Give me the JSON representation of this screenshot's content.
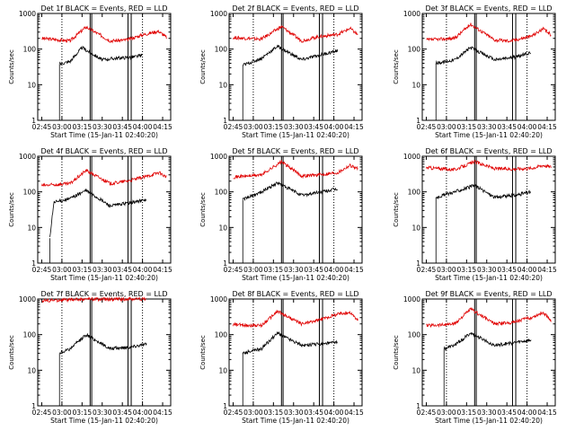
{
  "start_time_label": "Start Time (15-Jan-11 02:40:20)",
  "y_label": "Counts/sec",
  "x_ticks": [
    "02:45",
    "03:00",
    "03:15",
    "03:30",
    "03:45",
    "04:00",
    "04:15"
  ],
  "y_ticks": [
    "1",
    "10",
    "100",
    "1000"
  ],
  "colors": {
    "events": "#000000",
    "lld": "#e00000"
  },
  "chart_data": [
    {
      "type": "line",
      "title": "Det 1f BLACK = Events, RED = LLD",
      "events": [
        [
          2.97,
          38
        ],
        [
          3.1,
          45
        ],
        [
          3.25,
          110
        ],
        [
          3.5,
          50
        ],
        [
          3.65,
          55
        ],
        [
          3.9,
          60
        ],
        [
          4.0,
          68
        ]
      ],
      "lld": [
        [
          2.75,
          200
        ],
        [
          3.1,
          170
        ],
        [
          3.3,
          420
        ],
        [
          3.6,
          170
        ],
        [
          3.8,
          180
        ],
        [
          4.0,
          250
        ],
        [
          4.2,
          320
        ],
        [
          4.3,
          210
        ]
      ]
    },
    {
      "type": "line",
      "title": "Det 2f BLACK = Events, RED = LLD",
      "events": [
        [
          2.87,
          35
        ],
        [
          3.1,
          55
        ],
        [
          3.3,
          120
        ],
        [
          3.6,
          50
        ],
        [
          3.85,
          70
        ],
        [
          4.05,
          90
        ]
      ],
      "lld": [
        [
          2.75,
          210
        ],
        [
          3.1,
          190
        ],
        [
          3.35,
          430
        ],
        [
          3.6,
          170
        ],
        [
          3.8,
          220
        ],
        [
          4.05,
          260
        ],
        [
          4.2,
          380
        ],
        [
          4.3,
          250
        ]
      ]
    },
    {
      "type": "line",
      "title": "Det 3f BLACK = Events, RED = LLD",
      "events": [
        [
          2.87,
          40
        ],
        [
          3.1,
          50
        ],
        [
          3.3,
          110
        ],
        [
          3.6,
          50
        ],
        [
          3.85,
          60
        ],
        [
          4.05,
          80
        ]
      ],
      "lld": [
        [
          2.75,
          180
        ],
        [
          3.1,
          200
        ],
        [
          3.3,
          500
        ],
        [
          3.6,
          180
        ],
        [
          3.8,
          170
        ],
        [
          4.05,
          230
        ],
        [
          4.2,
          370
        ],
        [
          4.3,
          250
        ]
      ]
    },
    {
      "type": "line",
      "title": "Det 4f BLACK = Events, RED = LLD",
      "events": [
        [
          2.85,
          5
        ],
        [
          2.9,
          50
        ],
        [
          3.1,
          65
        ],
        [
          3.3,
          110
        ],
        [
          3.6,
          40
        ],
        [
          3.85,
          50
        ],
        [
          4.05,
          60
        ]
      ],
      "lld": [
        [
          2.75,
          150
        ],
        [
          3.1,
          170
        ],
        [
          3.3,
          400
        ],
        [
          3.6,
          170
        ],
        [
          3.8,
          200
        ],
        [
          4.05,
          270
        ],
        [
          4.2,
          350
        ],
        [
          4.3,
          260
        ]
      ]
    },
    {
      "type": "line",
      "title": "Det 5f BLACK = Events, RED = LLD",
      "events": [
        [
          2.87,
          60
        ],
        [
          3.1,
          100
        ],
        [
          3.3,
          180
        ],
        [
          3.6,
          80
        ],
        [
          3.85,
          100
        ],
        [
          4.05,
          120
        ]
      ],
      "lld": [
        [
          2.75,
          260
        ],
        [
          3.1,
          300
        ],
        [
          3.35,
          700
        ],
        [
          3.6,
          280
        ],
        [
          3.8,
          300
        ],
        [
          4.05,
          350
        ],
        [
          4.2,
          560
        ],
        [
          4.3,
          450
        ]
      ]
    },
    {
      "type": "line",
      "title": "Det 6f BLACK = Events, RED = LLD",
      "events": [
        [
          2.87,
          70
        ],
        [
          3.1,
          100
        ],
        [
          3.35,
          150
        ],
        [
          3.6,
          70
        ],
        [
          3.85,
          80
        ],
        [
          4.05,
          100
        ]
      ],
      "lld": [
        [
          2.75,
          480
        ],
        [
          3.1,
          420
        ],
        [
          3.35,
          700
        ],
        [
          3.6,
          450
        ],
        [
          3.8,
          440
        ],
        [
          4.05,
          460
        ],
        [
          4.2,
          560
        ],
        [
          4.3,
          500
        ]
      ]
    },
    {
      "type": "line",
      "title": "Det 7f BLACK = Events, RED = LLD",
      "events": [
        [
          2.97,
          30
        ],
        [
          3.1,
          40
        ],
        [
          3.3,
          100
        ],
        [
          3.6,
          40
        ],
        [
          3.85,
          45
        ],
        [
          4.05,
          55
        ]
      ],
      "lld": [
        [
          2.75,
          900
        ],
        [
          3.1,
          950
        ],
        [
          3.3,
          1000
        ],
        [
          3.6,
          980
        ],
        [
          3.85,
          1000
        ],
        [
          4.05,
          1000
        ]
      ]
    },
    {
      "type": "line",
      "title": "Det 8f BLACK = Events, RED = LLD",
      "events": [
        [
          2.87,
          30
        ],
        [
          3.1,
          40
        ],
        [
          3.3,
          110
        ],
        [
          3.6,
          50
        ],
        [
          3.85,
          55
        ],
        [
          4.05,
          60
        ]
      ],
      "lld": [
        [
          2.75,
          190
        ],
        [
          3.1,
          180
        ],
        [
          3.3,
          450
        ],
        [
          3.6,
          200
        ],
        [
          3.8,
          250
        ],
        [
          4.05,
          380
        ],
        [
          4.2,
          420
        ],
        [
          4.3,
          250
        ]
      ]
    },
    {
      "type": "line",
      "title": "Det 9f BLACK = Events, RED = LLD",
      "events": [
        [
          2.97,
          40
        ],
        [
          3.1,
          50
        ],
        [
          3.3,
          110
        ],
        [
          3.6,
          50
        ],
        [
          3.85,
          60
        ],
        [
          4.05,
          70
        ]
      ],
      "lld": [
        [
          2.75,
          180
        ],
        [
          3.1,
          200
        ],
        [
          3.3,
          520
        ],
        [
          3.6,
          200
        ],
        [
          3.8,
          220
        ],
        [
          4.05,
          300
        ],
        [
          4.2,
          420
        ],
        [
          4.3,
          250
        ]
      ]
    }
  ]
}
